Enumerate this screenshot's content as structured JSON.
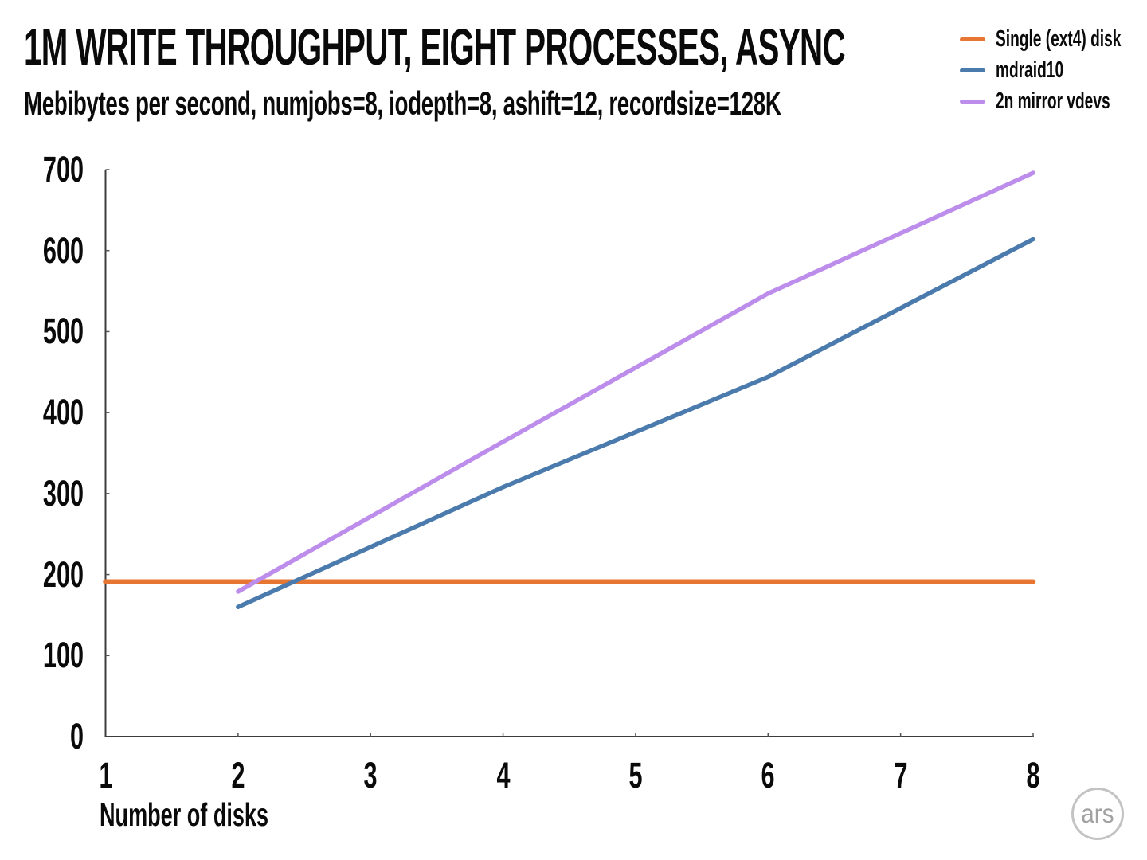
{
  "branding": {
    "logo_text": "ars"
  },
  "chart_data": {
    "type": "line",
    "title": "1M WRITE THROUGHPUT, EIGHT PROCESSES, ASYNC",
    "subtitle": "Mebibytes per second, numjobs=8, iodepth=8, ashift=12, recordsize=128K",
    "xlabel": "Number of disks",
    "ylabel": "",
    "xlim": [
      1,
      8
    ],
    "ylim": [
      0,
      700
    ],
    "x_ticks": [
      1,
      2,
      3,
      4,
      5,
      6,
      7,
      8
    ],
    "y_ticks": [
      0,
      100,
      200,
      300,
      400,
      500,
      600,
      700
    ],
    "grid": false,
    "legend_position": "top-right",
    "axis_color": "#3c3c3c",
    "series": [
      {
        "name": "Single (ext4) disk",
        "color": "#E87633",
        "stroke_width": 6.5,
        "points": [
          [
            1,
            191
          ],
          [
            8,
            191
          ]
        ]
      },
      {
        "name": "mdraid10",
        "color": "#4B7BAD",
        "stroke_width": 5.5,
        "points": [
          [
            2,
            160
          ],
          [
            4,
            308
          ],
          [
            6,
            444
          ],
          [
            8,
            614
          ]
        ]
      },
      {
        "name": "2n mirror vdevs",
        "color": "#BD8DEB",
        "stroke_width": 5.5,
        "points": [
          [
            2,
            179
          ],
          [
            4,
            364
          ],
          [
            6,
            547
          ],
          [
            8,
            696
          ]
        ]
      }
    ]
  }
}
